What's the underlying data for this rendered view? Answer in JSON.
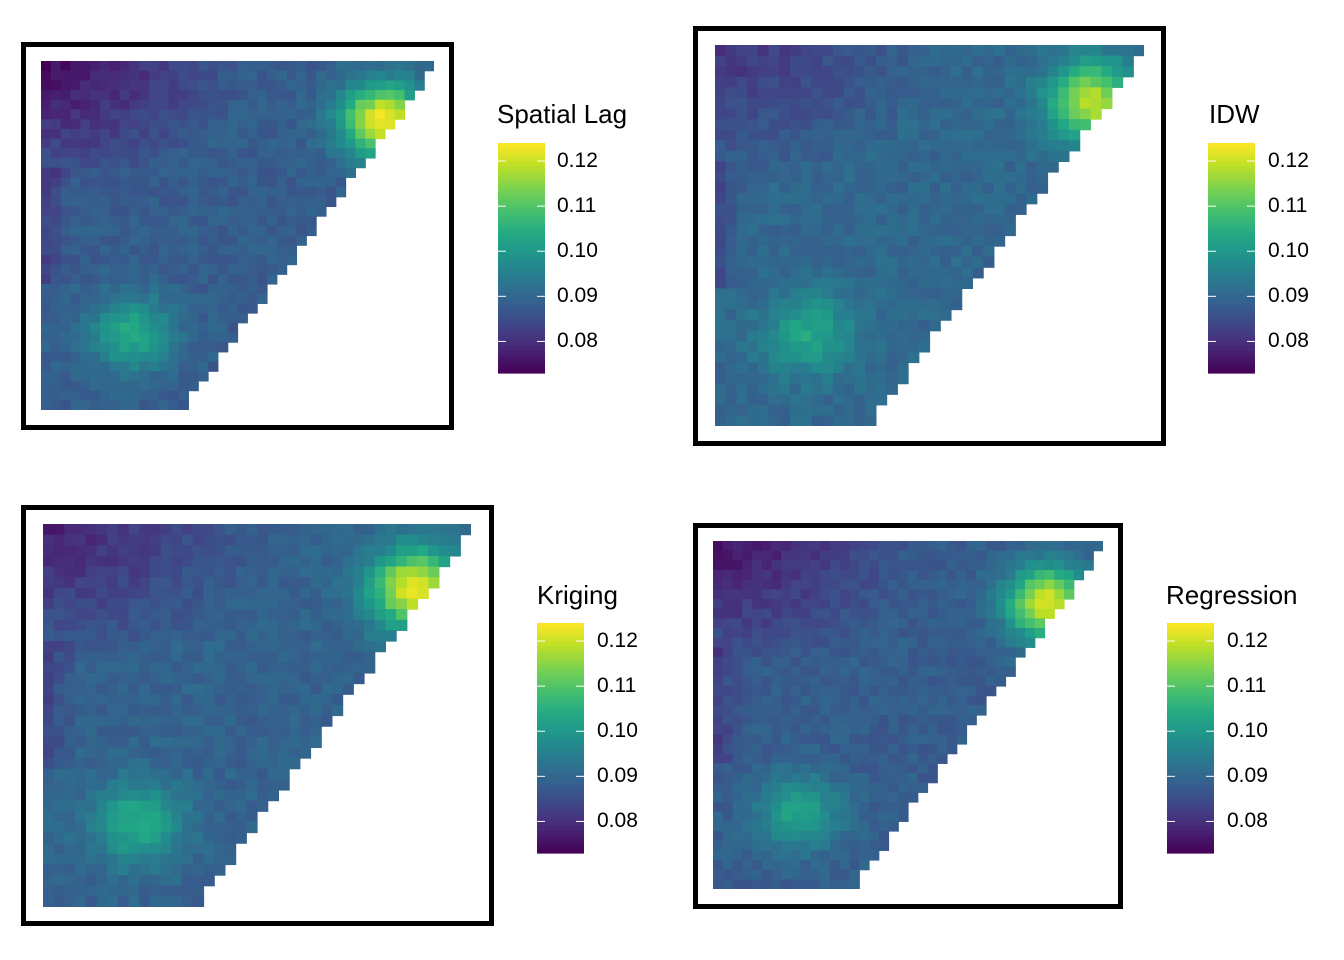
{
  "chart_data": [
    {
      "type": "heatmap",
      "legend_title": "Spatial Lag",
      "colormap": "viridis",
      "colorbar_ticks": [
        "0.08",
        "0.09",
        "0.10",
        "0.11",
        "0.12"
      ],
      "value_range": [
        0.073,
        0.124
      ],
      "hotspots": [
        {
          "x": 0.87,
          "y": 0.83,
          "value": 0.124
        },
        {
          "x": 0.23,
          "y": 0.22,
          "value": 0.104
        }
      ],
      "cold_corner": "top-left",
      "cold_value": 0.074,
      "base_value": 0.088
    },
    {
      "type": "heatmap",
      "legend_title": "IDW",
      "colormap": "viridis",
      "colorbar_ticks": [
        "0.08",
        "0.09",
        "0.10",
        "0.11",
        "0.12"
      ],
      "value_range": [
        0.073,
        0.124
      ],
      "hotspots": [
        {
          "x": 0.88,
          "y": 0.85,
          "value": 0.118
        },
        {
          "x": 0.22,
          "y": 0.24,
          "value": 0.103
        }
      ],
      "cold_corner": "top-left",
      "cold_value": 0.08,
      "base_value": 0.09
    },
    {
      "type": "heatmap",
      "legend_title": "Kriging",
      "colormap": "viridis",
      "colorbar_ticks": [
        "0.08",
        "0.09",
        "0.10",
        "0.11",
        "0.12"
      ],
      "value_range": [
        0.073,
        0.124
      ],
      "hotspots": [
        {
          "x": 0.87,
          "y": 0.83,
          "value": 0.123
        },
        {
          "x": 0.22,
          "y": 0.22,
          "value": 0.104
        }
      ],
      "cold_corner": "top-left",
      "cold_value": 0.077,
      "base_value": 0.089
    },
    {
      "type": "heatmap",
      "legend_title": "Regression",
      "colormap": "viridis",
      "colorbar_ticks": [
        "0.08",
        "0.09",
        "0.10",
        "0.11",
        "0.12"
      ],
      "value_range": [
        0.073,
        0.124
      ],
      "hotspots": [
        {
          "x": 0.86,
          "y": 0.82,
          "value": 0.122
        },
        {
          "x": 0.22,
          "y": 0.22,
          "value": 0.103
        }
      ],
      "cold_corner": "top-left",
      "cold_value": 0.075,
      "base_value": 0.088
    }
  ]
}
